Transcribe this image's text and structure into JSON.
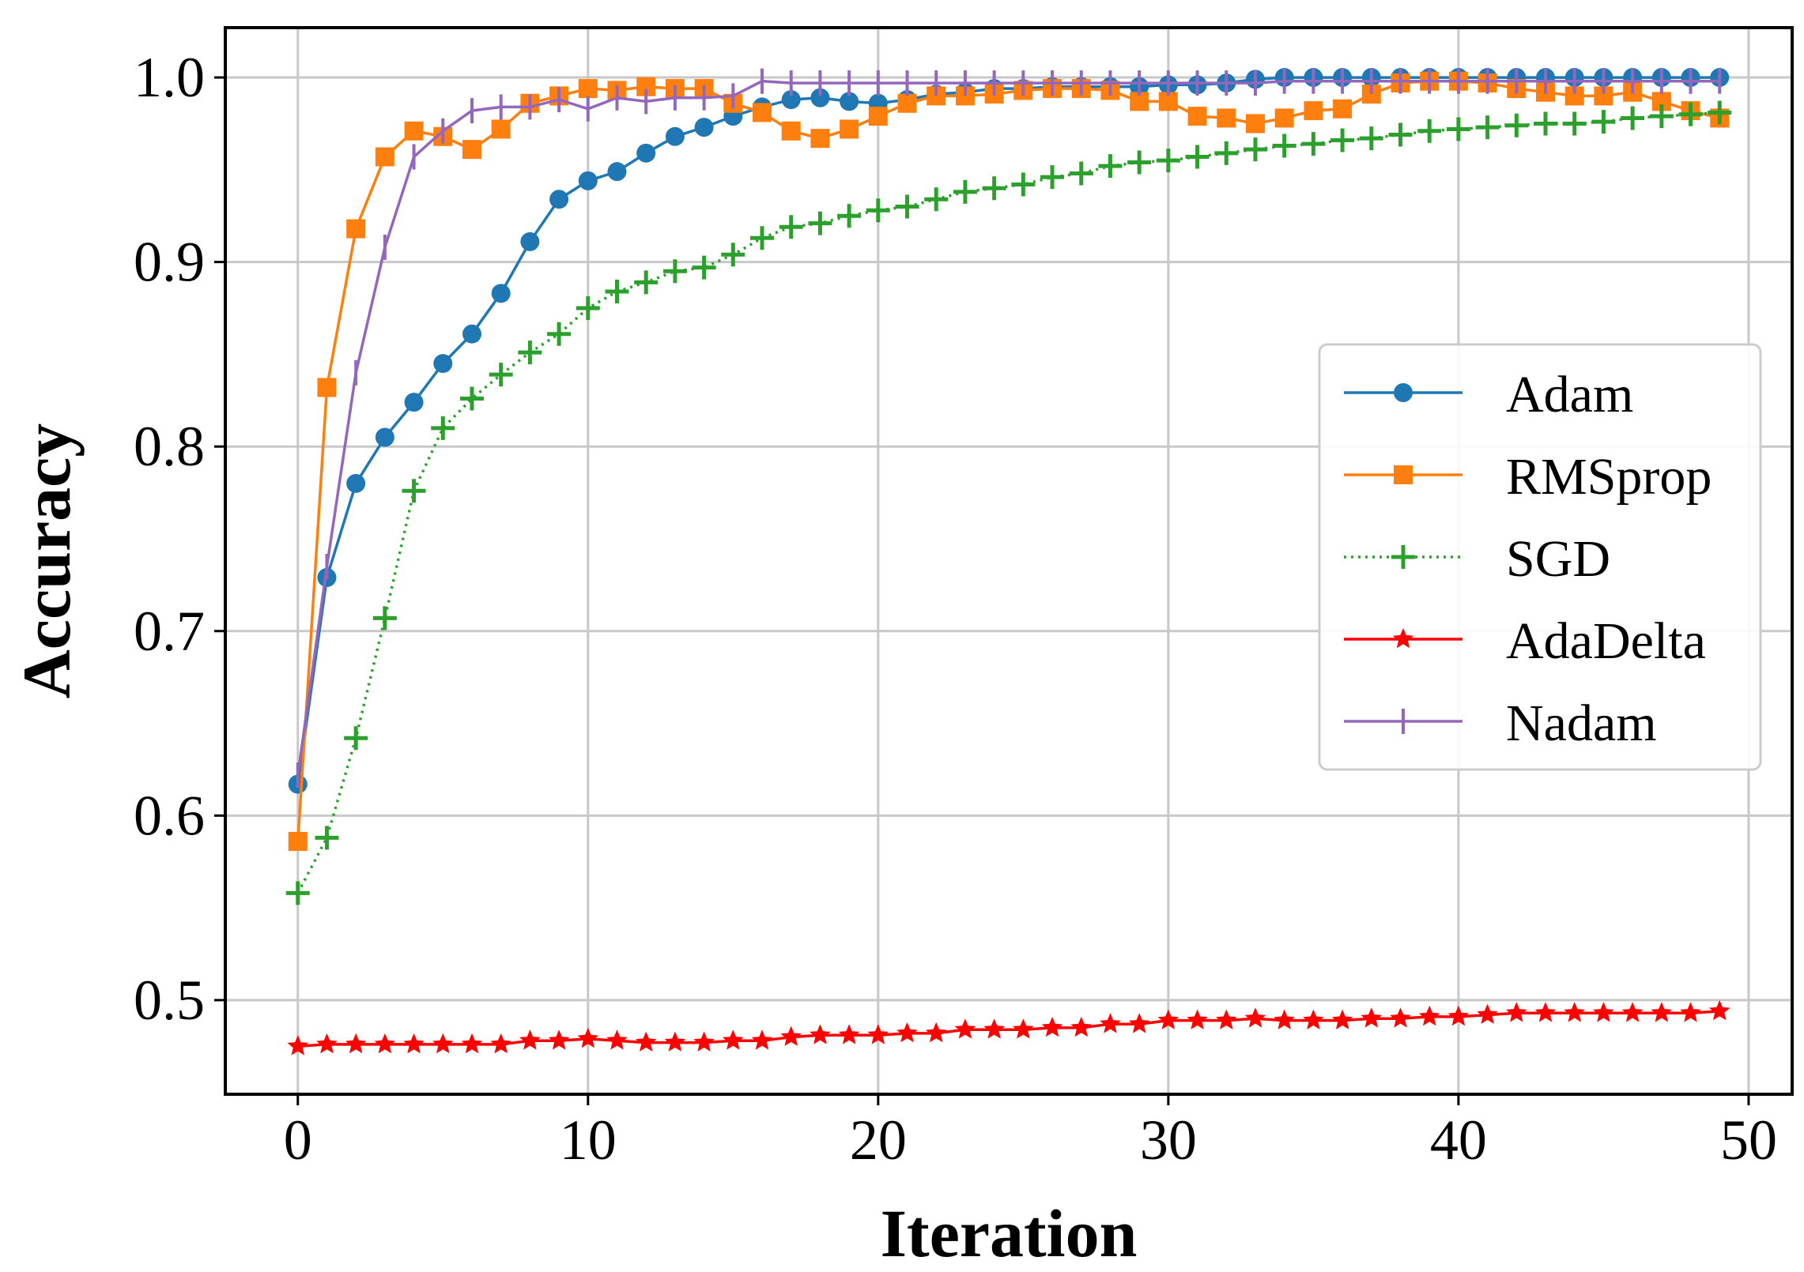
{
  "chart_data": {
    "type": "line",
    "xlabel": "Iteration",
    "ylabel": "Accuracy",
    "xlim": [
      -2.5,
      51.5
    ],
    "ylim": [
      0.449,
      1.027
    ],
    "xticks": [
      0,
      10,
      20,
      30,
      40,
      50
    ],
    "xtick_labels": [
      "0",
      "10",
      "20",
      "30",
      "40",
      "50"
    ],
    "yticks": [
      0.5,
      0.6,
      0.7,
      0.8,
      0.9,
      1.0
    ],
    "ytick_labels": [
      "0.5",
      "0.6",
      "0.7",
      "0.8",
      "0.9",
      "1.0"
    ],
    "grid": true,
    "legend_position": "center-right",
    "x": [
      0,
      1,
      2,
      3,
      4,
      5,
      6,
      7,
      8,
      9,
      10,
      11,
      12,
      13,
      14,
      15,
      16,
      17,
      18,
      19,
      20,
      21,
      22,
      23,
      24,
      25,
      26,
      27,
      28,
      29,
      30,
      31,
      32,
      33,
      34,
      35,
      36,
      37,
      38,
      39,
      40,
      41,
      42,
      43,
      44,
      45,
      46,
      47,
      48,
      49
    ],
    "series": [
      {
        "name": "Adam",
        "color": "#1f77b4",
        "marker": "circle",
        "line_style": "solid",
        "values": [
          0.617,
          0.729,
          0.78,
          0.805,
          0.824,
          0.845,
          0.861,
          0.883,
          0.911,
          0.934,
          0.944,
          0.949,
          0.959,
          0.968,
          0.973,
          0.979,
          0.984,
          0.988,
          0.989,
          0.987,
          0.986,
          0.988,
          0.991,
          0.992,
          0.994,
          0.994,
          0.995,
          0.995,
          0.995,
          0.995,
          0.996,
          0.996,
          0.997,
          0.999,
          1.0,
          1.0,
          1.0,
          1.0,
          1.0,
          1.0,
          1.0,
          1.0,
          1.0,
          1.0,
          1.0,
          1.0,
          1.0,
          1.0,
          1.0,
          1.0
        ]
      },
      {
        "name": "RMSprop",
        "color": "#ff7f0e",
        "marker": "square",
        "line_style": "solid",
        "values": [
          0.586,
          0.832,
          0.918,
          0.957,
          0.971,
          0.968,
          0.961,
          0.972,
          0.986,
          0.99,
          0.994,
          0.993,
          0.995,
          0.994,
          0.994,
          0.986,
          0.981,
          0.971,
          0.967,
          0.972,
          0.979,
          0.986,
          0.99,
          0.99,
          0.991,
          0.993,
          0.994,
          0.994,
          0.993,
          0.987,
          0.987,
          0.979,
          0.978,
          0.975,
          0.978,
          0.982,
          0.983,
          0.991,
          0.997,
          0.998,
          0.998,
          0.997,
          0.994,
          0.992,
          0.99,
          0.99,
          0.992,
          0.987,
          0.982,
          0.978
        ]
      },
      {
        "name": "SGD",
        "color": "#2ca02c",
        "marker": "plus",
        "line_style": "dotted",
        "values": [
          0.558,
          0.588,
          0.642,
          0.707,
          0.776,
          0.81,
          0.826,
          0.839,
          0.851,
          0.861,
          0.875,
          0.884,
          0.889,
          0.895,
          0.897,
          0.904,
          0.913,
          0.919,
          0.921,
          0.925,
          0.928,
          0.93,
          0.934,
          0.938,
          0.94,
          0.942,
          0.946,
          0.948,
          0.952,
          0.954,
          0.955,
          0.957,
          0.959,
          0.961,
          0.963,
          0.964,
          0.966,
          0.967,
          0.969,
          0.971,
          0.972,
          0.973,
          0.974,
          0.975,
          0.975,
          0.976,
          0.978,
          0.979,
          0.98,
          0.981
        ]
      },
      {
        "name": "AdaDelta",
        "color": "#ff0000",
        "marker": "star",
        "line_style": "solid",
        "values": [
          0.475,
          0.476,
          0.476,
          0.476,
          0.476,
          0.476,
          0.476,
          0.476,
          0.478,
          0.478,
          0.479,
          0.478,
          0.477,
          0.477,
          0.477,
          0.478,
          0.478,
          0.48,
          0.481,
          0.481,
          0.481,
          0.482,
          0.482,
          0.484,
          0.484,
          0.484,
          0.485,
          0.485,
          0.487,
          0.487,
          0.489,
          0.489,
          0.489,
          0.49,
          0.489,
          0.489,
          0.489,
          0.49,
          0.49,
          0.491,
          0.491,
          0.492,
          0.493,
          0.493,
          0.493,
          0.493,
          0.493,
          0.493,
          0.493,
          0.494
        ]
      },
      {
        "name": "Nadam",
        "color": "#9467bd",
        "marker": "vline",
        "line_style": "solid",
        "values": [
          0.622,
          0.735,
          0.84,
          0.908,
          0.957,
          0.971,
          0.982,
          0.984,
          0.984,
          0.988,
          0.983,
          0.989,
          0.987,
          0.989,
          0.989,
          0.99,
          0.998,
          0.997,
          0.997,
          0.997,
          0.997,
          0.997,
          0.997,
          0.997,
          0.997,
          0.997,
          0.997,
          0.997,
          0.997,
          0.997,
          0.997,
          0.997,
          0.997,
          0.997,
          0.998,
          0.998,
          0.998,
          0.998,
          0.998,
          0.998,
          0.998,
          0.998,
          0.998,
          0.998,
          0.998,
          0.998,
          0.998,
          0.998,
          0.998,
          0.998
        ]
      }
    ]
  }
}
